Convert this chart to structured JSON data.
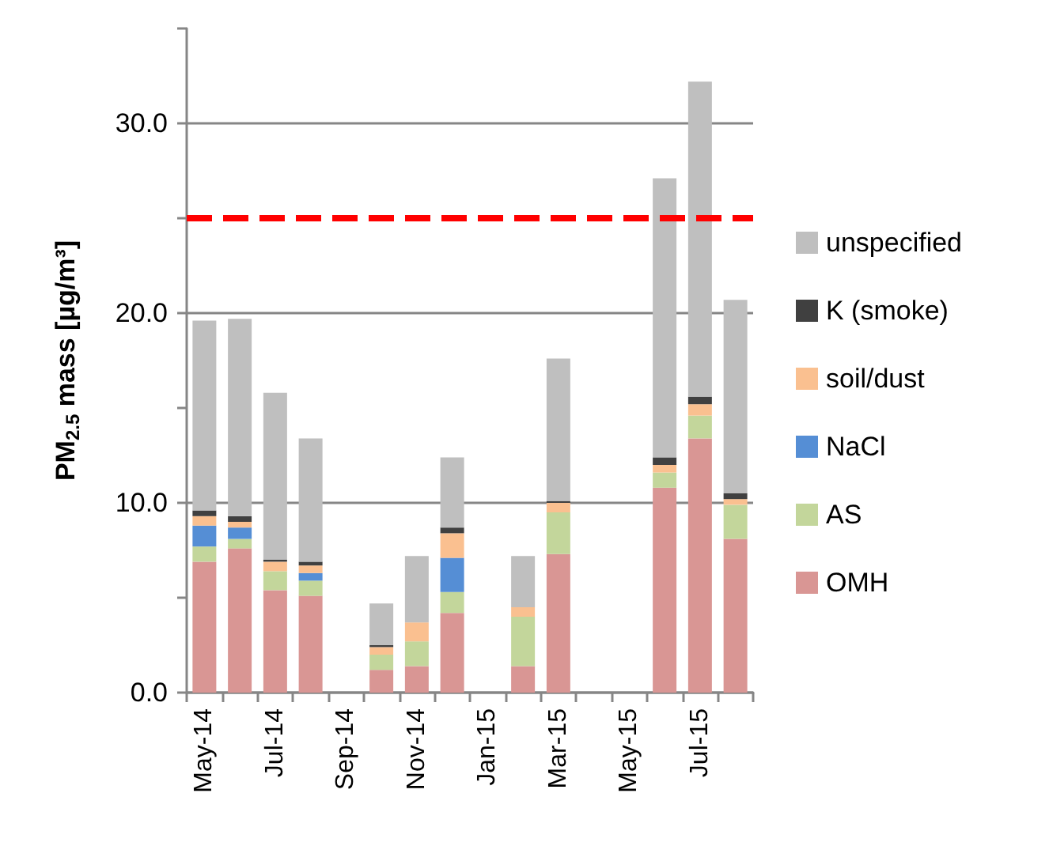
{
  "chart_data": {
    "type": "bar",
    "stacked": true,
    "categories": [
      "May-14",
      null,
      "Jul-14",
      null,
      "Sep-14",
      null,
      "Nov-14",
      null,
      "Jan-15",
      null,
      "Mar-15",
      null,
      "May-15",
      null,
      "Jul-15",
      null
    ],
    "ylabel": "PM$_{2.5}$ mass [µg/m³]",
    "ylim": [
      0,
      35
    ],
    "yticks": [
      {
        "value": 0,
        "label": "0.0"
      },
      {
        "value": 5,
        "label": null
      },
      {
        "value": 10,
        "label": "10.0"
      },
      {
        "value": 15,
        "label": null
      },
      {
        "value": 20,
        "label": "20.0"
      },
      {
        "value": 25,
        "label": null
      },
      {
        "value": 30,
        "label": "30.0"
      },
      {
        "value": 35,
        "label": null
      }
    ],
    "grid": "y",
    "legend": "right",
    "ref_lines": [
      {
        "axis": "y",
        "value": 25,
        "color": "#ff0000",
        "line_style": "dashed"
      }
    ],
    "series": [
      {
        "name": "OMH",
        "color": "#d99694",
        "values": [
          6.9,
          7.6,
          5.4,
          5.1,
          null,
          1.2,
          1.4,
          4.2,
          null,
          1.4,
          7.3,
          null,
          null,
          10.8,
          13.4,
          8.1
        ]
      },
      {
        "name": "AS",
        "color": "#c3d69b",
        "values": [
          0.8,
          0.5,
          1.0,
          0.8,
          null,
          0.8,
          1.3,
          1.1,
          null,
          2.6,
          2.2,
          null,
          null,
          0.8,
          1.2,
          1.8
        ]
      },
      {
        "name": "NaCl",
        "color": "#558ed5",
        "values": [
          1.1,
          0.6,
          null,
          0.4,
          null,
          null,
          null,
          1.8,
          null,
          null,
          null,
          null,
          null,
          null,
          null,
          null
        ]
      },
      {
        "name": "soil/dust",
        "color": "#fac090",
        "values": [
          0.5,
          0.3,
          0.5,
          0.4,
          null,
          0.4,
          1.0,
          1.3,
          null,
          0.5,
          0.5,
          null,
          null,
          0.4,
          0.6,
          0.3
        ]
      },
      {
        "name": "K (smoke)",
        "color": "#404040",
        "values": [
          0.3,
          0.3,
          0.1,
          0.2,
          null,
          0.1,
          null,
          0.3,
          null,
          null,
          0.1,
          null,
          null,
          0.4,
          0.4,
          0.3
        ]
      },
      {
        "name": "unspecified",
        "color": "#bfbfbf",
        "values": [
          10.0,
          10.4,
          8.8,
          6.5,
          null,
          2.2,
          3.5,
          3.7,
          null,
          2.7,
          7.5,
          null,
          null,
          14.7,
          16.6,
          10.2
        ]
      }
    ]
  }
}
